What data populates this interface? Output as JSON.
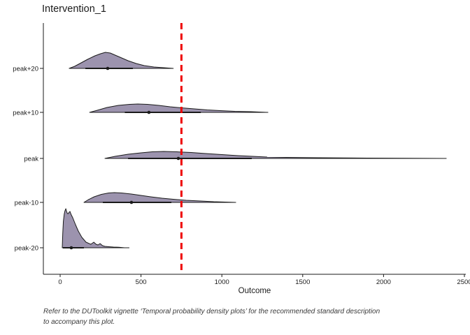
{
  "title": "Intervention_1",
  "caption": {
    "line1": "Refer to the DUToolkit vignette ‘Temporal probability density plots’ for the recommended standard description",
    "line2": "to accompany this plot."
  },
  "colors": {
    "background": "#ffffff",
    "density_fill": "#9C93AE",
    "density_stroke": "#1a1a1a",
    "reference_line": "#EE0000",
    "axis": "#1a1a1a",
    "text": "#1a1a1a",
    "caption_text": "#3a3a3a"
  },
  "chart_data": {
    "type": "area",
    "subtype": "temporal-probability-density-ridgeline",
    "title": "Intervention_1",
    "xlabel": "Outcome",
    "ylabel": "",
    "xlim": [
      0,
      2500
    ],
    "x_ticks": [
      0,
      500,
      1000,
      1500,
      2000,
      2500
    ],
    "categories": [
      "peak+20",
      "peak+10",
      "peak",
      "peak-10",
      "peak-20"
    ],
    "grid": false,
    "legend": false,
    "reference_line": {
      "x": 750,
      "style": "dashed",
      "color": "#EE0000"
    },
    "note": "density arrays are [outcome_value, curve_height_px_above_baseline]; interval = horizontal credible-interval bar; median = point marker; range = full extent of baseline rug line",
    "series": [
      {
        "category": "peak+20",
        "median": 294,
        "interval": [
          156,
          450
        ],
        "range": [
          56,
          700
        ],
        "density": [
          [
            56,
            0
          ],
          [
            90,
            3
          ],
          [
            130,
            8
          ],
          [
            170,
            13
          ],
          [
            215,
            18
          ],
          [
            250,
            21
          ],
          [
            280,
            23
          ],
          [
            310,
            22
          ],
          [
            340,
            19
          ],
          [
            380,
            15
          ],
          [
            420,
            11
          ],
          [
            470,
            7
          ],
          [
            520,
            4
          ],
          [
            580,
            2
          ],
          [
            640,
            1
          ],
          [
            700,
            0
          ]
        ]
      },
      {
        "category": "peak+10",
        "median": 549,
        "interval": [
          400,
          870
        ],
        "range": [
          182,
          1285
        ],
        "density": [
          [
            182,
            0
          ],
          [
            230,
            3
          ],
          [
            290,
            7
          ],
          [
            360,
            10
          ],
          [
            430,
            11.5
          ],
          [
            480,
            12
          ],
          [
            540,
            11.5
          ],
          [
            610,
            10
          ],
          [
            680,
            8
          ],
          [
            750,
            6.5
          ],
          [
            830,
            5
          ],
          [
            910,
            3.5
          ],
          [
            990,
            2.5
          ],
          [
            1080,
            1.5
          ],
          [
            1180,
            1
          ],
          [
            1285,
            0
          ]
        ]
      },
      {
        "category": "peak",
        "median": 731,
        "interval": [
          420,
          1185
        ],
        "range": [
          277,
          2388
        ],
        "density": [
          [
            277,
            0
          ],
          [
            340,
            3
          ],
          [
            420,
            6
          ],
          [
            500,
            8
          ],
          [
            570,
            9.5
          ],
          [
            640,
            10
          ],
          [
            720,
            9.5
          ],
          [
            810,
            8.5
          ],
          [
            900,
            7
          ],
          [
            1000,
            5.5
          ],
          [
            1100,
            4
          ],
          [
            1190,
            3
          ],
          [
            1280,
            2
          ],
          [
            1400,
            1.5
          ],
          [
            1600,
            1
          ],
          [
            1900,
            0.5
          ],
          [
            2150,
            0.3
          ],
          [
            2388,
            0
          ]
        ]
      },
      {
        "category": "peak-10",
        "median": 441,
        "interval": [
          264,
          688
        ],
        "range": [
          147,
          1086
        ],
        "density": [
          [
            147,
            0
          ],
          [
            175,
            4
          ],
          [
            210,
            8
          ],
          [
            255,
            11.5
          ],
          [
            300,
            13.5
          ],
          [
            335,
            14
          ],
          [
            380,
            13.5
          ],
          [
            440,
            12
          ],
          [
            500,
            10
          ],
          [
            560,
            8
          ],
          [
            630,
            6
          ],
          [
            700,
            4.5
          ],
          [
            780,
            3
          ],
          [
            869,
            2
          ],
          [
            950,
            1
          ],
          [
            1020,
            0.5
          ],
          [
            1086,
            0
          ]
        ]
      },
      {
        "category": "peak-20",
        "median": 69,
        "interval": [
          17,
          147
        ],
        "range": [
          13,
          428
        ],
        "density": [
          [
            13,
            0
          ],
          [
            16,
            20
          ],
          [
            20,
            38
          ],
          [
            25,
            48
          ],
          [
            30,
            53
          ],
          [
            35,
            56
          ],
          [
            40,
            52
          ],
          [
            45,
            49
          ],
          [
            51,
            49
          ],
          [
            56,
            51
          ],
          [
            61,
            52
          ],
          [
            67,
            48
          ],
          [
            78,
            43
          ],
          [
            95,
            33
          ],
          [
            112,
            24
          ],
          [
            134,
            15
          ],
          [
            160,
            8
          ],
          [
            190,
            5
          ],
          [
            208,
            8
          ],
          [
            222,
            5
          ],
          [
            234,
            4
          ],
          [
            247,
            6
          ],
          [
            262,
            3
          ],
          [
            277,
            2
          ],
          [
            300,
            1.5
          ],
          [
            330,
            1
          ],
          [
            363,
            0.7
          ],
          [
            398,
            0
          ]
        ]
      }
    ]
  }
}
